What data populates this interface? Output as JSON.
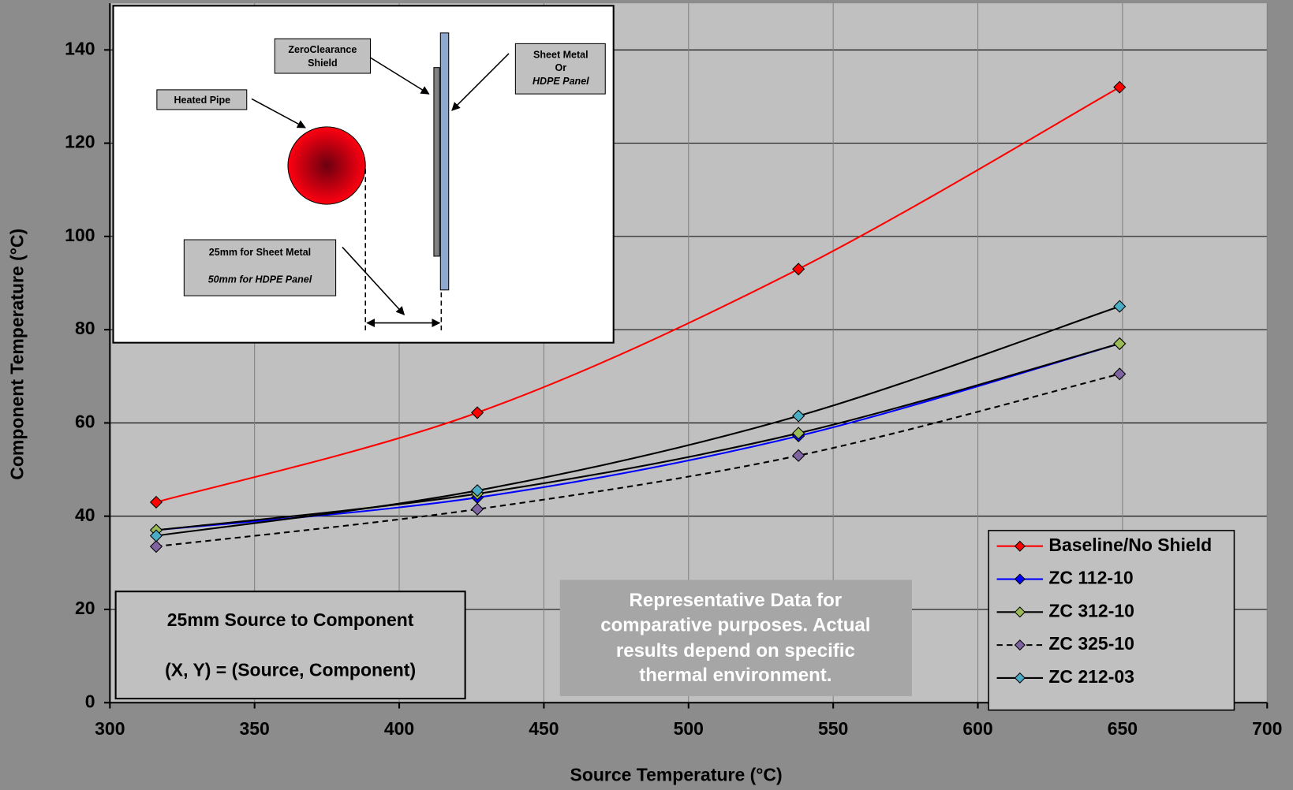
{
  "chart_data": {
    "type": "line",
    "x_label": "Source Temperature (°C)",
    "y_label": "Component Temperature (°C)",
    "x": [
      316,
      427,
      538,
      649
    ],
    "series": [
      {
        "name": "Baseline/No Shield",
        "color": "#ff0000",
        "marker_color": "#ff0000",
        "dashed": false,
        "values": [
          43,
          62.2,
          93,
          132
        ]
      },
      {
        "name": "ZC 112-10",
        "color": "#0000ff",
        "marker_color": "#0000ff",
        "dashed": false,
        "values": [
          37,
          44,
          57.2,
          77
        ]
      },
      {
        "name": "ZC 312-10",
        "color": "#000000",
        "marker_color": "#9bbb59",
        "dashed": false,
        "values": [
          37,
          44.8,
          57.8,
          77
        ]
      },
      {
        "name": "ZC 325-10",
        "color": "#000000",
        "marker_color": "#8064a2",
        "dashed": true,
        "values": [
          33.5,
          41.5,
          53,
          70.5
        ]
      },
      {
        "name": "ZC 212-03",
        "color": "#000000",
        "marker_color": "#4bacc6",
        "dashed": false,
        "values": [
          35.8,
          45.5,
          61.5,
          85
        ]
      }
    ],
    "xlim": [
      300,
      700
    ],
    "xticks": [
      300,
      350,
      400,
      450,
      500,
      550,
      600,
      650,
      700
    ],
    "ylim": [
      0,
      150
    ],
    "yticks": [
      0,
      20,
      40,
      60,
      80,
      100,
      120,
      140
    ],
    "grid": true,
    "legend": "lower right",
    "annotations": [
      {
        "lines": [
          "25mm Source to Component",
          "(X, Y) = (Source, Component)"
        ]
      },
      {
        "lines": [
          "Representative Data for",
          "comparative purposes. Actual",
          "results depend on specific",
          "thermal environment."
        ]
      }
    ],
    "inset": {
      "shield_label": [
        "ZeroClearance",
        "Shield"
      ],
      "panel_label": [
        "Sheet Metal",
        "Or",
        "HDPE Panel"
      ],
      "pipe_label": "Heated Pipe",
      "distance_label": [
        "25mm for Sheet Metal",
        "50mm for HDPE Panel"
      ]
    }
  }
}
